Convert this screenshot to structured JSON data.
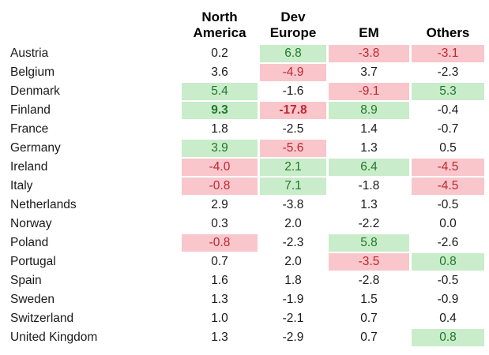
{
  "colors": {
    "positive_bg": "#c9ecca",
    "positive_text": "#1e7a28",
    "negative_bg": "#f9c6cb",
    "negative_text": "#be2830",
    "header_text": "#000000",
    "default_text": "#1a1a1a"
  },
  "table": {
    "columns": [
      "North America",
      "Dev Europe",
      "EM",
      "Others"
    ],
    "rows": [
      {
        "label": "Austria",
        "values": [
          "0.2",
          "6.8",
          "-3.8",
          "-3.1"
        ],
        "styles": [
          "plain",
          "pos",
          "neg",
          "neg"
        ],
        "bold": [
          false,
          false,
          false,
          false
        ]
      },
      {
        "label": "Belgium",
        "values": [
          "3.6",
          "-4.9",
          "3.7",
          "-2.3"
        ],
        "styles": [
          "plain",
          "neg",
          "plain",
          "plain"
        ],
        "bold": [
          false,
          false,
          false,
          false
        ]
      },
      {
        "label": "Denmark",
        "values": [
          "5.4",
          "-1.6",
          "-9.1",
          "5.3"
        ],
        "styles": [
          "pos",
          "plain",
          "neg",
          "pos"
        ],
        "bold": [
          false,
          false,
          false,
          false
        ]
      },
      {
        "label": "Finland",
        "values": [
          "9.3",
          "-17.8",
          "8.9",
          "-0.4"
        ],
        "styles": [
          "pos",
          "neg",
          "pos",
          "plain"
        ],
        "bold": [
          true,
          true,
          false,
          false
        ]
      },
      {
        "label": "France",
        "values": [
          "1.8",
          "-2.5",
          "1.4",
          "-0.7"
        ],
        "styles": [
          "plain",
          "plain",
          "plain",
          "plain"
        ],
        "bold": [
          false,
          false,
          false,
          false
        ]
      },
      {
        "label": "Germany",
        "values": [
          "3.9",
          "-5.6",
          "1.3",
          "0.5"
        ],
        "styles": [
          "pos",
          "neg",
          "plain",
          "plain"
        ],
        "bold": [
          false,
          false,
          false,
          false
        ]
      },
      {
        "label": "Ireland",
        "values": [
          "-4.0",
          "2.1",
          "6.4",
          "-4.5"
        ],
        "styles": [
          "neg",
          "pos",
          "pos",
          "neg"
        ],
        "bold": [
          false,
          false,
          false,
          false
        ]
      },
      {
        "label": "Italy",
        "values": [
          "-0.8",
          "7.1",
          "-1.8",
          "-4.5"
        ],
        "styles": [
          "neg",
          "pos",
          "plain",
          "neg"
        ],
        "bold": [
          false,
          false,
          false,
          false
        ]
      },
      {
        "label": "Netherlands",
        "values": [
          "2.9",
          "-3.8",
          "1.3",
          "-0.5"
        ],
        "styles": [
          "plain",
          "plain",
          "plain",
          "plain"
        ],
        "bold": [
          false,
          false,
          false,
          false
        ]
      },
      {
        "label": "Norway",
        "values": [
          "0.3",
          "2.0",
          "-2.2",
          "0.0"
        ],
        "styles": [
          "plain",
          "plain",
          "plain",
          "plain"
        ],
        "bold": [
          false,
          false,
          false,
          false
        ]
      },
      {
        "label": "Poland",
        "values": [
          "-0.8",
          "-2.3",
          "5.8",
          "-2.6"
        ],
        "styles": [
          "neg",
          "plain",
          "pos",
          "plain"
        ],
        "bold": [
          false,
          false,
          false,
          false
        ]
      },
      {
        "label": "Portugal",
        "values": [
          "0.7",
          "2.0",
          "-3.5",
          "0.8"
        ],
        "styles": [
          "plain",
          "plain",
          "neg",
          "pos"
        ],
        "bold": [
          false,
          false,
          false,
          false
        ]
      },
      {
        "label": "Spain",
        "values": [
          "1.6",
          "1.8",
          "-2.8",
          "-0.5"
        ],
        "styles": [
          "plain",
          "plain",
          "plain",
          "plain"
        ],
        "bold": [
          false,
          false,
          false,
          false
        ]
      },
      {
        "label": "Sweden",
        "values": [
          "1.3",
          "-1.9",
          "1.5",
          "-0.9"
        ],
        "styles": [
          "plain",
          "plain",
          "plain",
          "plain"
        ],
        "bold": [
          false,
          false,
          false,
          false
        ]
      },
      {
        "label": "Switzerland",
        "values": [
          "1.0",
          "-2.1",
          "0.7",
          "0.4"
        ],
        "styles": [
          "plain",
          "plain",
          "plain",
          "plain"
        ],
        "bold": [
          false,
          false,
          false,
          false
        ]
      },
      {
        "label": "United Kingdom",
        "values": [
          "1.3",
          "-2.9",
          "0.7",
          "0.8"
        ],
        "styles": [
          "plain",
          "plain",
          "plain",
          "pos"
        ],
        "bold": [
          false,
          false,
          false,
          false
        ]
      }
    ]
  },
  "chart_data": {
    "type": "heatmap",
    "title": "",
    "columns": [
      "North America",
      "Dev Europe",
      "EM",
      "Others"
    ],
    "rows": [
      "Austria",
      "Belgium",
      "Denmark",
      "Finland",
      "France",
      "Germany",
      "Ireland",
      "Italy",
      "Netherlands",
      "Norway",
      "Poland",
      "Portugal",
      "Spain",
      "Sweden",
      "Switzerland",
      "United Kingdom"
    ],
    "values": [
      [
        0.2,
        6.8,
        -3.8,
        -3.1
      ],
      [
        3.6,
        -4.9,
        3.7,
        -2.3
      ],
      [
        5.4,
        -1.6,
        -9.1,
        5.3
      ],
      [
        9.3,
        -17.8,
        8.9,
        -0.4
      ],
      [
        1.8,
        -2.5,
        1.4,
        -0.7
      ],
      [
        3.9,
        -5.6,
        1.3,
        0.5
      ],
      [
        -4.0,
        2.1,
        6.4,
        -4.5
      ],
      [
        -0.8,
        7.1,
        -1.8,
        -4.5
      ],
      [
        2.9,
        -3.8,
        1.3,
        -0.5
      ],
      [
        0.3,
        2.0,
        -2.2,
        0.0
      ],
      [
        -0.8,
        -2.3,
        5.8,
        -2.6
      ],
      [
        0.7,
        2.0,
        -3.5,
        0.8
      ],
      [
        1.6,
        1.8,
        -2.8,
        -0.5
      ],
      [
        1.3,
        -1.9,
        1.5,
        -0.9
      ],
      [
        1.0,
        -2.1,
        0.7,
        0.4
      ],
      [
        1.3,
        -2.9,
        0.7,
        0.8
      ]
    ],
    "cell_highlights": [
      [
        "none",
        "green",
        "pink",
        "pink"
      ],
      [
        "none",
        "pink",
        "none",
        "none"
      ],
      [
        "green",
        "none",
        "pink",
        "green"
      ],
      [
        "green",
        "pink",
        "green",
        "none"
      ],
      [
        "none",
        "none",
        "none",
        "none"
      ],
      [
        "green",
        "pink",
        "none",
        "none"
      ],
      [
        "pink",
        "green",
        "green",
        "pink"
      ],
      [
        "pink",
        "green",
        "none",
        "pink"
      ],
      [
        "none",
        "none",
        "none",
        "none"
      ],
      [
        "none",
        "none",
        "none",
        "none"
      ],
      [
        "pink",
        "none",
        "green",
        "none"
      ],
      [
        "none",
        "none",
        "pink",
        "green"
      ],
      [
        "none",
        "none",
        "none",
        "none"
      ],
      [
        "none",
        "none",
        "none",
        "none"
      ],
      [
        "none",
        "none",
        "none",
        "none"
      ],
      [
        "none",
        "none",
        "none",
        "green"
      ]
    ],
    "legend_position": "none",
    "grid": false
  }
}
